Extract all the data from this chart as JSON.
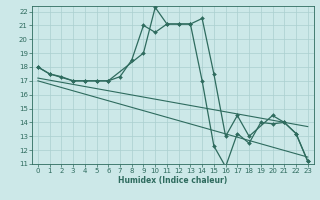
{
  "xlabel": "Humidex (Indice chaleur)",
  "ylabel": "",
  "bg_color": "#cce8e8",
  "line_color": "#2e6b5e",
  "grid_color": "#aacfcf",
  "xlim": [
    -0.5,
    23.5
  ],
  "ylim": [
    11,
    22.4
  ],
  "xticks": [
    0,
    1,
    2,
    3,
    4,
    5,
    6,
    7,
    8,
    9,
    10,
    11,
    12,
    13,
    14,
    15,
    16,
    17,
    18,
    19,
    20,
    21,
    22,
    23
  ],
  "yticks": [
    11,
    12,
    13,
    14,
    15,
    16,
    17,
    18,
    19,
    20,
    21,
    22
  ],
  "line1_x": [
    0,
    1,
    2,
    3,
    4,
    5,
    6,
    7,
    8,
    9,
    10,
    11,
    12,
    13,
    14,
    15,
    16,
    17,
    18,
    19,
    20,
    21,
    22,
    23
  ],
  "line1_y": [
    18,
    17.5,
    17.3,
    17,
    17,
    17,
    17,
    17.3,
    18.5,
    21,
    20.5,
    21.1,
    21.1,
    21.1,
    17.0,
    12.3,
    10.8,
    13.2,
    12.5,
    14.0,
    13.9,
    14.0,
    13.2,
    11.2
  ],
  "line2_x": [
    0,
    1,
    3,
    4,
    5,
    6,
    9,
    10,
    11,
    12,
    13,
    14,
    15,
    16,
    17,
    18,
    20,
    21,
    22,
    23
  ],
  "line2_y": [
    18,
    17.5,
    17,
    17,
    17,
    17,
    19,
    22.3,
    21.1,
    21.1,
    21.1,
    21.5,
    17.5,
    13.0,
    14.5,
    13.0,
    14.5,
    14.0,
    13.2,
    11.2
  ],
  "line3_x": [
    0,
    23
  ],
  "line3_y": [
    17.2,
    13.7
  ],
  "line4_x": [
    0,
    23
  ],
  "line4_y": [
    17.0,
    11.5
  ]
}
